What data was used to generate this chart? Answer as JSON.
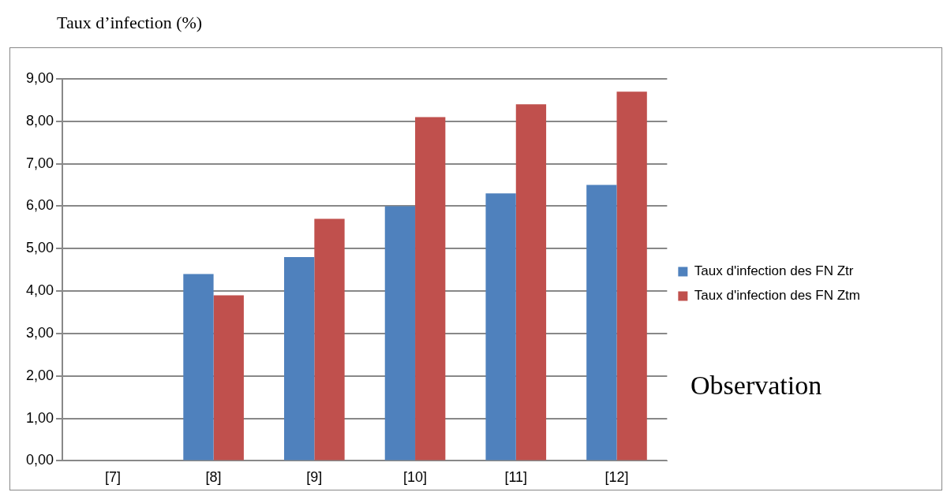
{
  "chart_data": {
    "type": "bar",
    "ylabel": "Taux d’infection (%)",
    "xlabel": "Observation",
    "categories": [
      "[7]",
      "[8]",
      "[9]",
      "[10]",
      "[11]",
      "[12]"
    ],
    "series": [
      {
        "name": "Taux d'infection des FN Ztr",
        "color": "#4f81bd",
        "values": [
          0,
          4.4,
          4.8,
          6.0,
          6.3,
          6.5
        ]
      },
      {
        "name": "Taux d'infection des FN Ztm",
        "color": "#c0504d",
        "values": [
          0,
          3.9,
          5.7,
          8.1,
          8.4,
          8.7
        ]
      }
    ],
    "ylim": [
      0,
      9
    ],
    "yticks": [
      {
        "value": 0,
        "label": "0,00"
      },
      {
        "value": 1,
        "label": "1,00"
      },
      {
        "value": 2,
        "label": "2,00"
      },
      {
        "value": 3,
        "label": "3,00"
      },
      {
        "value": 4,
        "label": "4,00"
      },
      {
        "value": 5,
        "label": "5,00"
      },
      {
        "value": 6,
        "label": "6,00"
      },
      {
        "value": 7,
        "label": "7,00"
      },
      {
        "value": 8,
        "label": "8,00"
      },
      {
        "value": 9,
        "label": "9,00"
      }
    ],
    "grid": "y",
    "legend": "right"
  }
}
